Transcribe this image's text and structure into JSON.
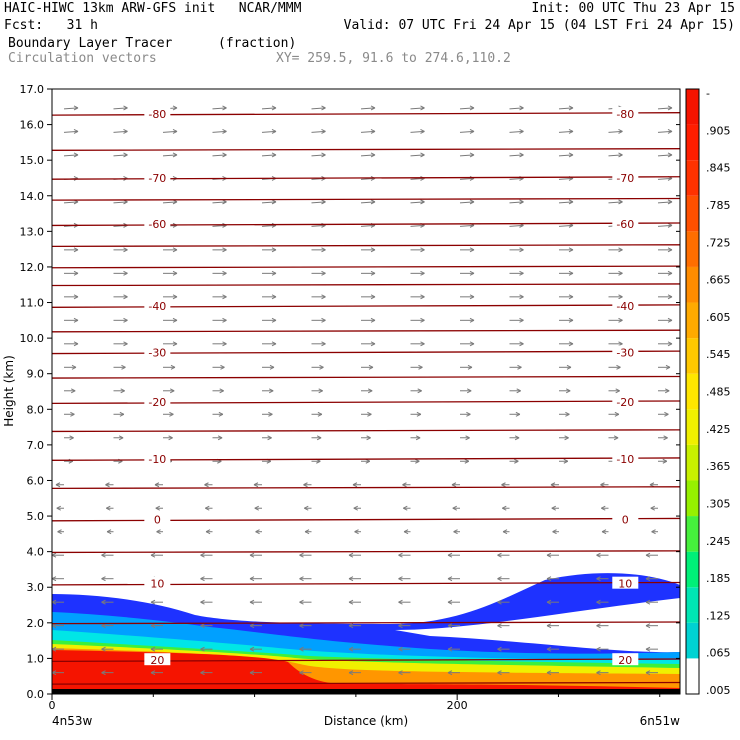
{
  "header": {
    "line1_left": "HAIC-HIWC 13km ARW-GFS init   NCAR/MMM",
    "line1_right": "Init: 00 UTC Thu 23 Apr 15",
    "line2_left": "Fcst:   31 h",
    "line2_right": "Valid: 07 UTC Fri 24 Apr 15 (04 LST Fri 24 Apr 15)",
    "field_name": "Boundary Layer Tracer",
    "field_units": "(fraction)",
    "vector_label": "Circulation vectors",
    "xy_label": "XY= 259.5, 91.6 to 274.6,110.2"
  },
  "colors": {
    "contour": "#8b0000",
    "vector": "#7a7a7a",
    "colorbar": [
      "#ffffff",
      "#00d2d2",
      "#00e6b4",
      "#00f078",
      "#46f03c",
      "#96f000",
      "#c8f000",
      "#f0f000",
      "#ffe600",
      "#ffc800",
      "#ffaa00",
      "#ff8c00",
      "#ff6e00",
      "#ff5000",
      "#ff3200",
      "#ff1e00",
      "#f51400"
    ]
  },
  "chart_data": {
    "type": "contour",
    "xlabel": "Distance (km)",
    "ylabel": "Height (km)",
    "xlim": [
      0,
      310
    ],
    "ylim": [
      0,
      17
    ],
    "x_ticks": [
      {
        "value": 0,
        "label": "0"
      },
      {
        "value": 200,
        "label": "200"
      }
    ],
    "x_end_labels": [
      "4n53w",
      "6n51w"
    ],
    "y_ticks": [
      "0.0",
      "1.0",
      "2.0",
      "3.0",
      "4.0",
      "5.0",
      "6.0",
      "7.0",
      "8.0",
      "9.0",
      "10.0",
      "11.0",
      "12.0",
      "13.0",
      "14.0",
      "15.0",
      "16.0",
      "17.0"
    ],
    "colorbar_labels": [
      "-",
      ".905",
      ".845",
      ".785",
      ".725",
      ".665",
      ".605",
      ".545",
      ".485",
      ".425",
      ".365",
      ".305",
      ".245",
      ".185",
      ".125",
      ".065",
      ".005"
    ],
    "temperature_contours": [
      {
        "label": "-80",
        "y": 16.3
      },
      {
        "label": "-70",
        "y": 14.5
      },
      {
        "label": "-60",
        "y": 13.2
      },
      {
        "label": "-40",
        "y": 10.9
      },
      {
        "label": "-30",
        "y": 9.6
      },
      {
        "label": "-20",
        "y": 8.2
      },
      {
        "label": "-10",
        "y": 6.6
      },
      {
        "label": "0",
        "y": 4.9
      },
      {
        "label": "10",
        "y": 3.1
      },
      {
        "label": "20",
        "y": 0.95
      }
    ],
    "unlabeled_contour_heights": [
      15.3,
      13.9,
      12.6,
      12.0,
      11.5,
      10.2,
      8.9,
      7.4,
      5.8,
      4.0,
      2.0,
      0.3
    ]
  }
}
